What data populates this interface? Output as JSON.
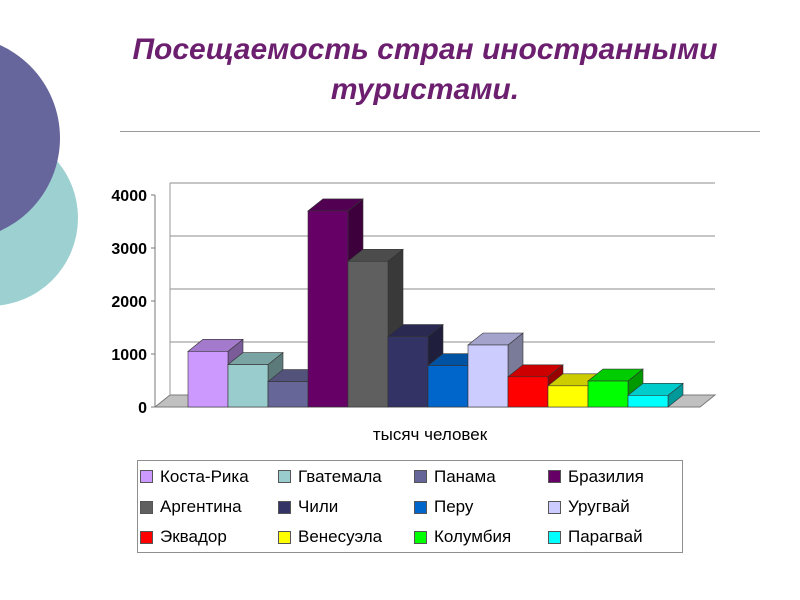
{
  "title_line1": "Посещаемость стран иностранными",
  "title_line2": "туристами.",
  "chart_data": {
    "type": "bar",
    "variant": "3d-clustered",
    "title": "Посещаемость стран иностранными туристами.",
    "xlabel": "тысяч человек",
    "ylabel": "",
    "ylim": [
      0,
      4000
    ],
    "yticks": [
      "0",
      "1000",
      "2000",
      "3000",
      "4000"
    ],
    "grid": true,
    "legend_position": "bottom",
    "series": [
      {
        "name": "Коста-Рика",
        "value": 1050,
        "color": "#cc99ff"
      },
      {
        "name": "Гватемала",
        "value": 800,
        "color": "#99cccc"
      },
      {
        "name": "Панама",
        "value": 480,
        "color": "#666699"
      },
      {
        "name": "Бразилия",
        "value": 3700,
        "color": "#660066"
      },
      {
        "name": "Аргентина",
        "value": 2750,
        "color": "#5f5f5f"
      },
      {
        "name": "Чили",
        "value": 1330,
        "color": "#333366"
      },
      {
        "name": "Перу",
        "value": 780,
        "color": "#0066cc"
      },
      {
        "name": "Уругвай",
        "value": 1170,
        "color": "#ccccff"
      },
      {
        "name": "Эквадор",
        "value": 570,
        "color": "#ff0000"
      },
      {
        "name": "Венесуэла",
        "value": 400,
        "color": "#ffff00"
      },
      {
        "name": "Колумбия",
        "value": 490,
        "color": "#00ff00"
      },
      {
        "name": "Парагвай",
        "value": 220,
        "color": "#00ffff"
      }
    ]
  }
}
